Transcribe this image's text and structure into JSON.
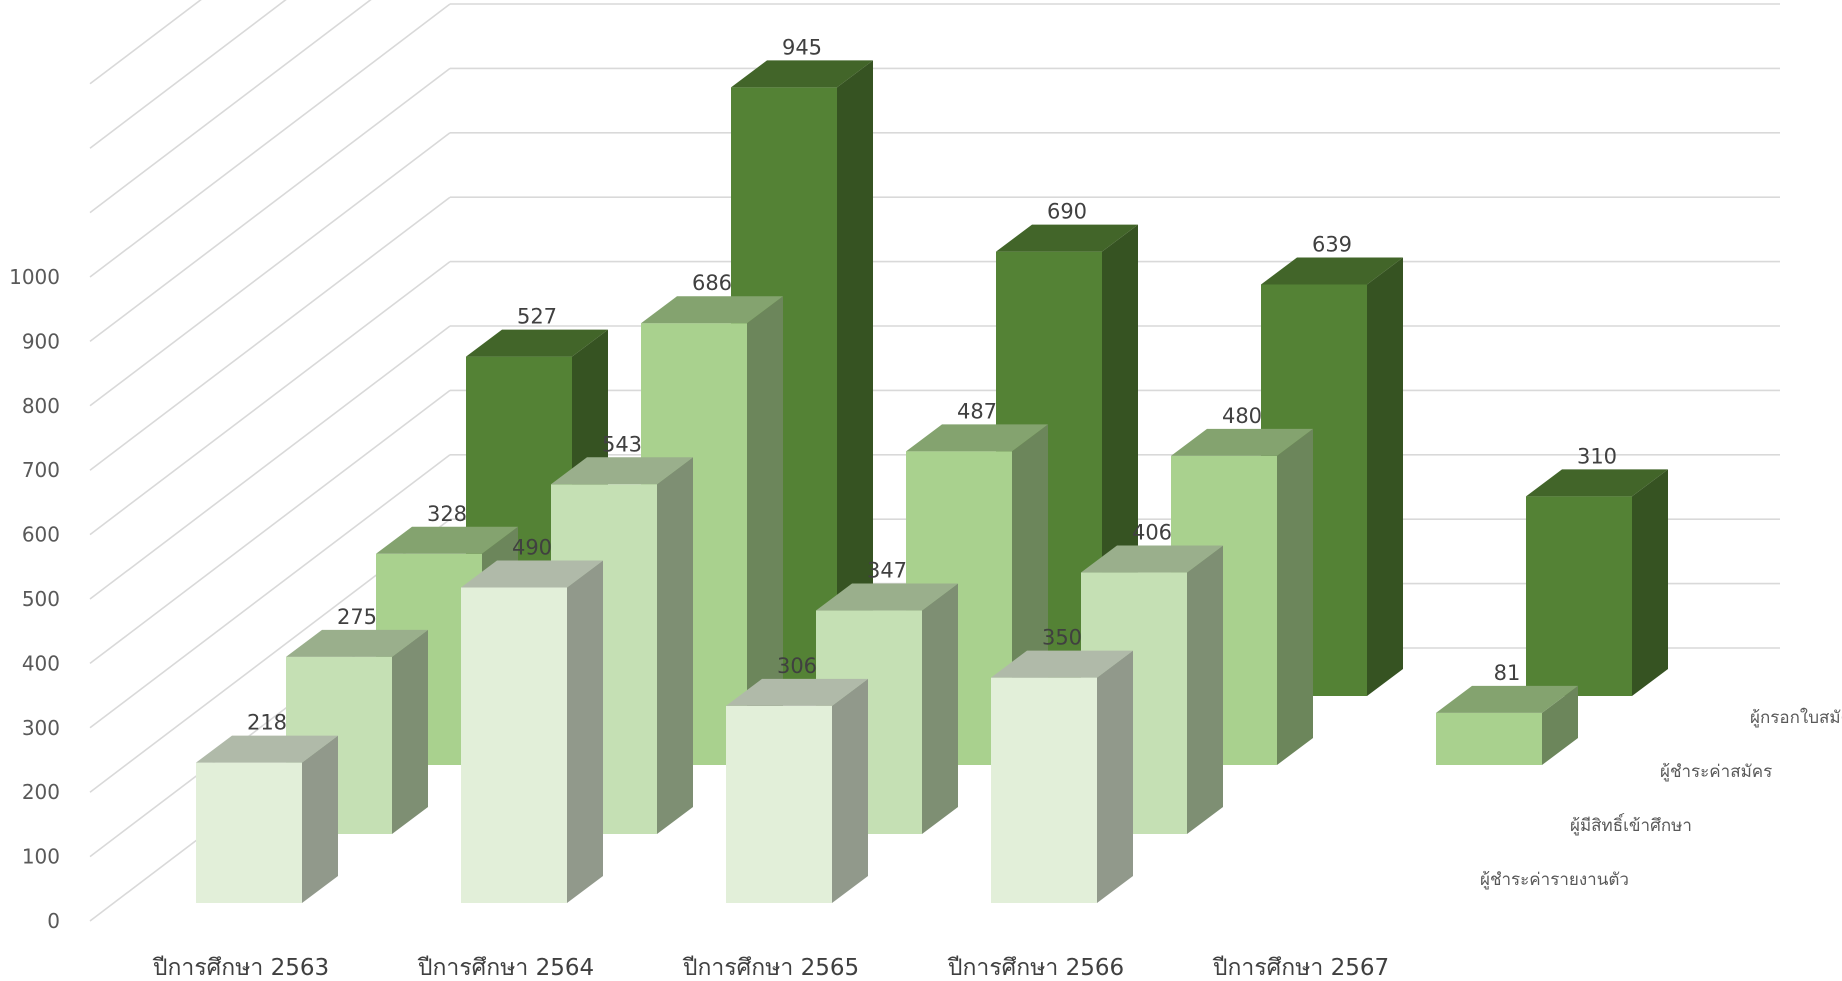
{
  "chart_data": {
    "type": "bar",
    "subtype": "3d-column",
    "categories": [
      "ปีการศึกษา 2563",
      "ปีการศึกษา 2564",
      "ปีการศึกษา 2565",
      "ปีการศึกษา 2566",
      "ปีการศึกษา 2567"
    ],
    "series": [
      {
        "name": "ผู้ชำระค่ารายงานตัว",
        "values": [
          218,
          490,
          306,
          350,
          null
        ],
        "color": "#e2efd9"
      },
      {
        "name": "ผู้มีสิทธิ์เข้าศึกษา",
        "values": [
          275,
          543,
          347,
          406,
          null
        ],
        "color": "#c5e0b4"
      },
      {
        "name": "ผู้ชำระค่าสมัคร",
        "values": [
          328,
          686,
          487,
          480,
          81
        ],
        "color": "#a9d18e"
      },
      {
        "name": "ผู้กรอกใบสมัคร",
        "values": [
          527,
          945,
          690,
          639,
          310
        ],
        "color": "#548235"
      }
    ],
    "yticks": [
      0,
      100,
      200,
      300,
      400,
      500,
      600,
      700,
      800,
      900,
      1000
    ],
    "ylim": [
      0,
      1000
    ],
    "grid": true,
    "data_labels": true,
    "legend": "series axis labels at right"
  }
}
